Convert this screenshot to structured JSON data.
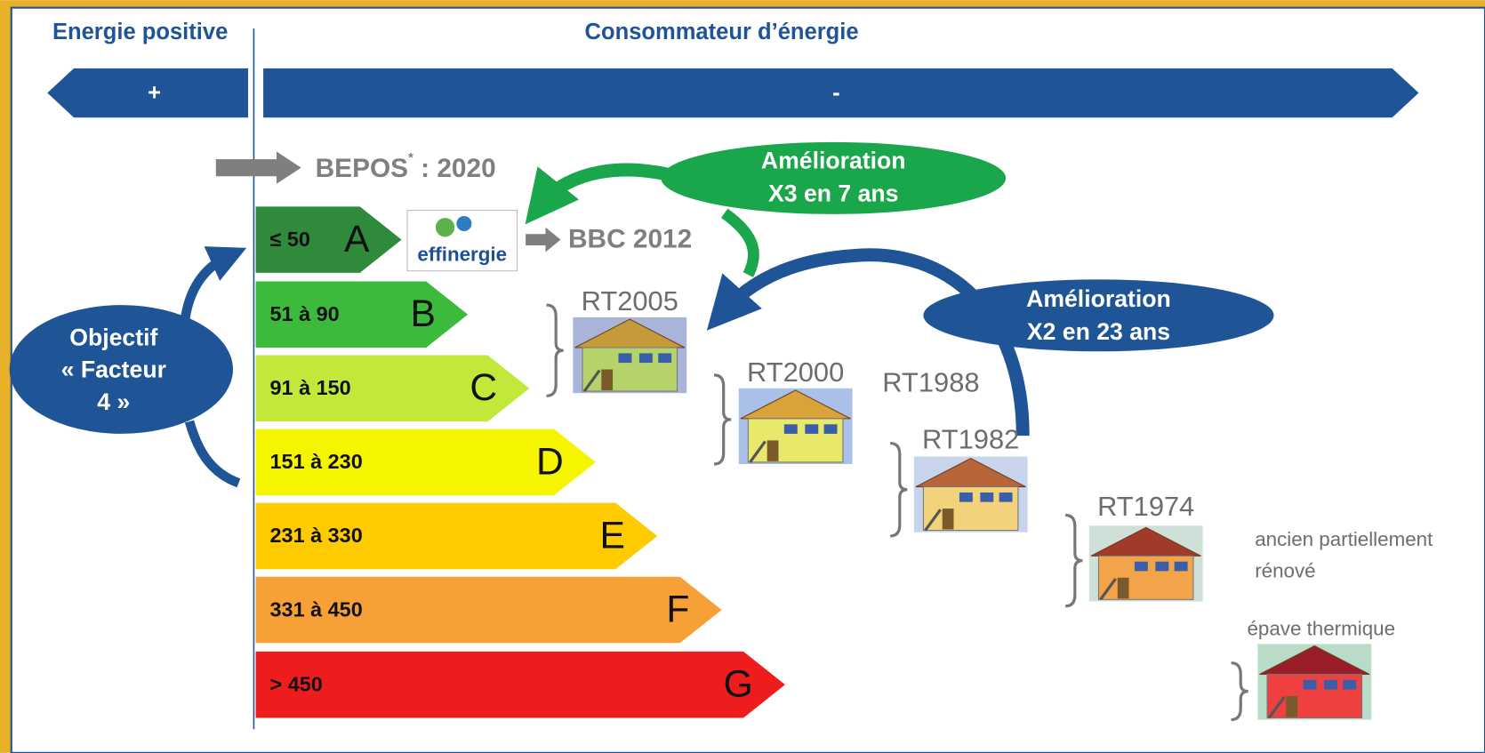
{
  "header": {
    "left": "Energie positive",
    "right": "Consommateur d’énergie"
  },
  "band": {
    "plus": "+",
    "minus": "-"
  },
  "bepos": {
    "name": "BEPOS",
    "mark": "*",
    "year": " : 2020"
  },
  "grades": [
    {
      "range": "≤ 50",
      "letter": "A"
    },
    {
      "range": "51 à 90",
      "letter": "B"
    },
    {
      "range": "91 à 150",
      "letter": "C"
    },
    {
      "range": "151 à 230",
      "letter": "D"
    },
    {
      "range": "231 à 330",
      "letter": "E"
    },
    {
      "range": "331 à 450",
      "letter": "F"
    },
    {
      "range": "> 450",
      "letter": "G"
    }
  ],
  "logo": "effinergie",
  "bbc": "BBC 2012",
  "improvement_green": [
    "Amélioration",
    "X3 en 7 ans"
  ],
  "improvement_blue": [
    "Amélioration",
    "X2 en 23 ans"
  ],
  "objective": [
    "Objectif",
    "« Facteur",
    "4 »"
  ],
  "regulations": [
    "RT2005",
    "RT2000",
    "RT1988",
    "RT1982",
    "RT1974"
  ],
  "old_renovated": [
    "ancien partiellement",
    "rénové"
  ],
  "wreck": "épave thermique"
}
